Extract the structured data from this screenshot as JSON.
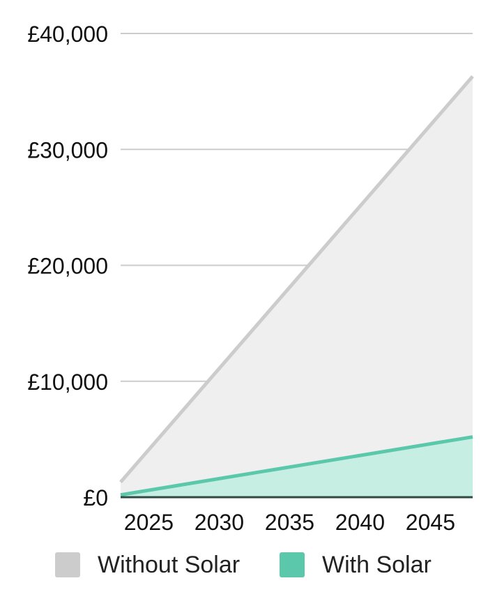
{
  "chart_data": {
    "type": "area",
    "x": [
      2023,
      2048
    ],
    "xticks": [
      2025,
      2030,
      2035,
      2040,
      2045
    ],
    "xtick_labels": [
      "2025",
      "2030",
      "2035",
      "2040",
      "2045"
    ],
    "yticks": [
      0,
      10000,
      20000,
      30000,
      40000
    ],
    "ytick_labels": [
      "£0",
      "£10,000",
      "£20,000",
      "£30,000",
      "£40,000"
    ],
    "ylim": [
      0,
      40000
    ],
    "xlim": [
      2023,
      2048
    ],
    "grid": true,
    "legend_position": "bottom",
    "series": [
      {
        "name": "Without Solar",
        "values": [
          1300,
          36300
        ],
        "line_color": "#cccccc",
        "fill_color": "#efefef"
      },
      {
        "name": "With Solar",
        "values": [
          200,
          5200
        ],
        "line_color": "#5cc8ab",
        "fill_color": "#c6eee2"
      }
    ]
  },
  "legend": [
    {
      "label": "Without Solar",
      "color": "#cccccc"
    },
    {
      "label": "With Solar",
      "color": "#5cc8ab"
    }
  ]
}
